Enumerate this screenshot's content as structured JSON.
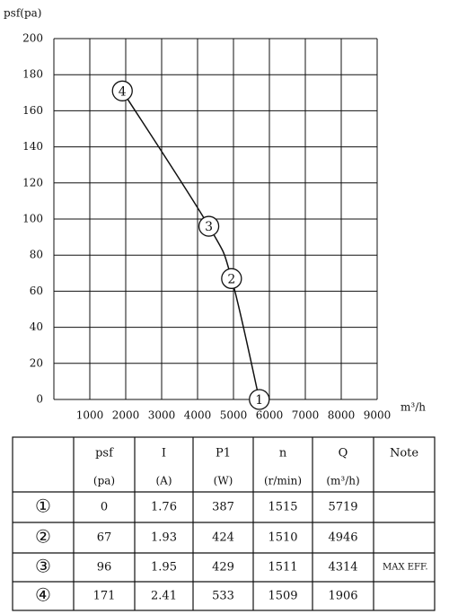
{
  "chart_data": {
    "type": "line",
    "ylabel": "psf(pa)",
    "xlabel": "m³/h",
    "x": [
      5719,
      4946,
      4314,
      1906
    ],
    "values": [
      0,
      67,
      96,
      171
    ],
    "point_labels": [
      "1",
      "2",
      "3",
      "4"
    ],
    "color": "#111111",
    "xlim": [
      0,
      9000
    ],
    "xticks": [
      1000,
      2000,
      3000,
      4000,
      5000,
      6000,
      7000,
      8000,
      9000
    ],
    "ylim": [
      0,
      200
    ],
    "yticks": [
      0,
      20,
      40,
      60,
      80,
      100,
      120,
      140,
      160,
      180,
      200
    ],
    "grid": true
  },
  "table": {
    "header": [
      "psf",
      "I",
      "P1",
      "n",
      "Q",
      "Note"
    ],
    "units": [
      "(pa)",
      "(A)",
      "(W)",
      "(r/min)",
      "(m³/h)"
    ],
    "rows": [
      {
        "id": "①",
        "cells": [
          "0",
          "1.76",
          "387",
          "1515",
          "5719"
        ]
      },
      {
        "id": "②",
        "cells": [
          "67",
          "1.93",
          "424",
          "1510",
          "4946"
        ]
      },
      {
        "id": "③",
        "cells": [
          "96",
          "1.95",
          "429",
          "1511",
          "4314"
        ],
        "note": "MAX EFF."
      },
      {
        "id": "④",
        "cells": [
          "171",
          "2.41",
          "533",
          "1509",
          "1906"
        ]
      }
    ]
  }
}
